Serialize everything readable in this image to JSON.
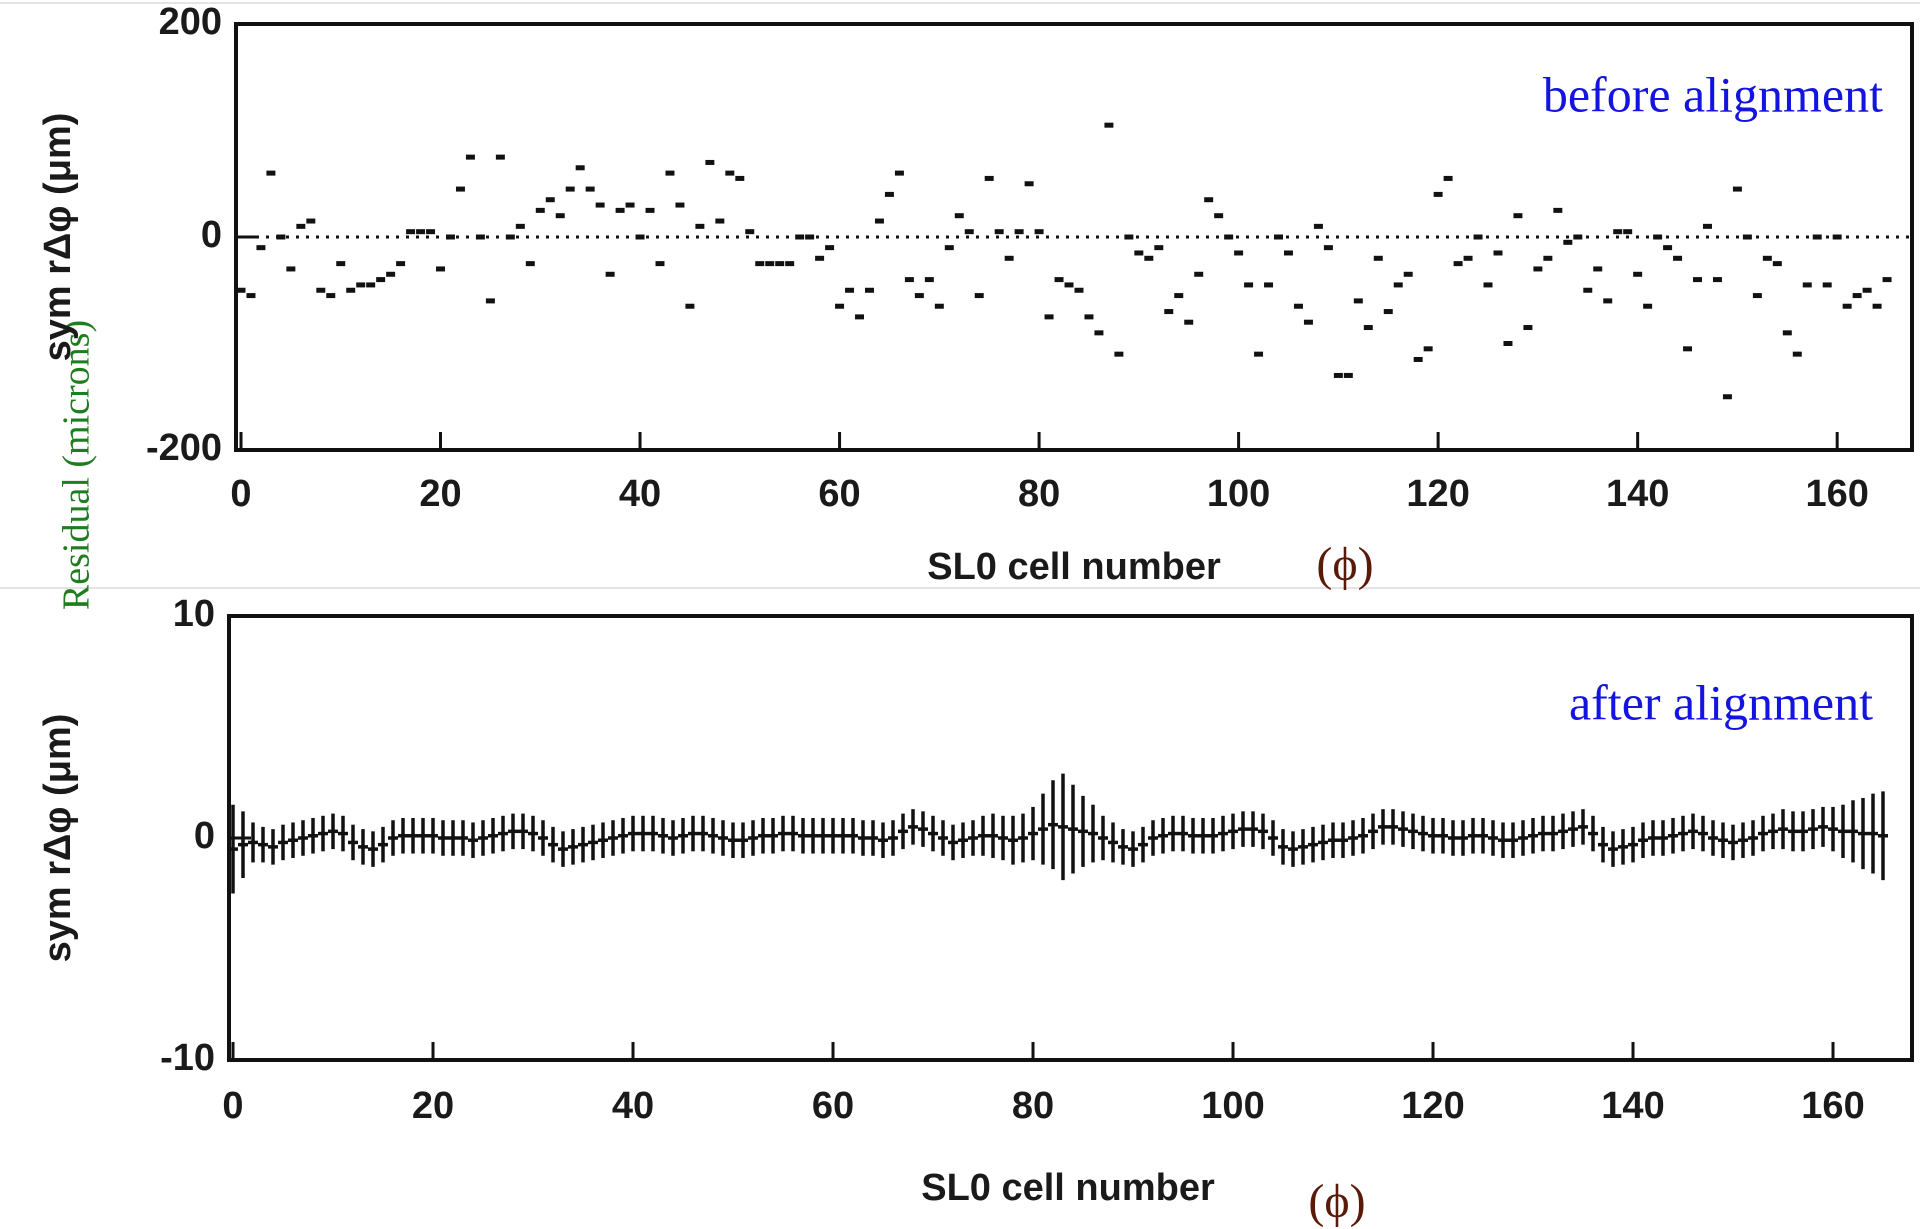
{
  "side_label": "Residual (microns)",
  "chart_data": [
    {
      "type": "scatter",
      "annotation": "before alignment",
      "x_label": "SL0 cell number",
      "x_label_suffix": "(ϕ)",
      "y_label": "sym rΔφ (μm)",
      "xlim": [
        -0.5,
        167.5
      ],
      "ylim": [
        -200,
        200
      ],
      "xticks": [
        0,
        20,
        40,
        60,
        80,
        100,
        120,
        140,
        160
      ],
      "yticks": [
        -200,
        0,
        200
      ],
      "zero_line": true,
      "color": "#111111",
      "x": [
        0,
        1,
        2,
        3,
        4,
        5,
        6,
        7,
        8,
        9,
        10,
        11,
        12,
        13,
        14,
        15,
        16,
        17,
        18,
        19,
        20,
        21,
        22,
        23,
        24,
        25,
        26,
        27,
        28,
        29,
        30,
        31,
        32,
        33,
        34,
        35,
        36,
        37,
        38,
        39,
        40,
        41,
        42,
        43,
        44,
        45,
        46,
        47,
        48,
        49,
        50,
        51,
        52,
        53,
        54,
        55,
        56,
        57,
        58,
        59,
        60,
        61,
        62,
        63,
        64,
        65,
        66,
        67,
        68,
        69,
        70,
        71,
        72,
        73,
        74,
        75,
        76,
        77,
        78,
        79,
        80,
        81,
        82,
        83,
        84,
        85,
        86,
        87,
        88,
        89,
        90,
        91,
        92,
        93,
        94,
        95,
        96,
        97,
        98,
        99,
        100,
        101,
        102,
        103,
        104,
        105,
        106,
        107,
        108,
        109,
        110,
        111,
        112,
        113,
        114,
        115,
        116,
        117,
        118,
        119,
        120,
        121,
        122,
        123,
        124,
        125,
        126,
        127,
        128,
        129,
        130,
        131,
        132,
        133,
        134,
        135,
        136,
        137,
        138,
        139,
        140,
        141,
        142,
        143,
        144,
        145,
        146,
        147,
        148,
        149,
        150,
        151,
        152,
        153,
        154,
        155,
        156,
        157,
        158,
        159,
        160,
        161,
        162,
        163,
        164,
        165
      ],
      "values": [
        -50,
        -55,
        -10,
        60,
        0,
        -30,
        10,
        15,
        -50,
        -55,
        -25,
        -50,
        -45,
        -45,
        -40,
        -35,
        -25,
        5,
        5,
        5,
        -30,
        0,
        45,
        75,
        0,
        -60,
        75,
        0,
        10,
        -25,
        25,
        35,
        20,
        45,
        65,
        45,
        30,
        -35,
        25,
        30,
        0,
        25,
        -25,
        60,
        30,
        -65,
        10,
        70,
        15,
        60,
        55,
        5,
        -25,
        -25,
        -25,
        -25,
        0,
        0,
        -20,
        -10,
        -65,
        -50,
        -75,
        -50,
        15,
        40,
        60,
        -40,
        -55,
        -40,
        -65,
        -10,
        20,
        5,
        -55,
        55,
        5,
        -20,
        5,
        50,
        5,
        -75,
        -40,
        -45,
        -50,
        -75,
        -90,
        105,
        -110,
        0,
        -15,
        -20,
        -10,
        -70,
        -55,
        -80,
        -35,
        35,
        20,
        0,
        -15,
        -45,
        -110,
        -45,
        0,
        -15,
        -65,
        -80,
        10,
        -10,
        -130,
        -130,
        -60,
        -85,
        -20,
        -70,
        -45,
        -35,
        -115,
        -105,
        40,
        55,
        -25,
        -20,
        0,
        -45,
        -15,
        -100,
        20,
        -85,
        -30,
        -20,
        25,
        -5,
        0,
        -50,
        -30,
        -60,
        5,
        5,
        -35,
        -65,
        0,
        -10,
        -20,
        -105,
        -40,
        10,
        -40,
        -150,
        45,
        0,
        -55,
        -20,
        -25,
        -90,
        -110,
        -45,
        0,
        -45,
        0,
        -65,
        -55,
        -50,
        -65,
        -40
      ]
    },
    {
      "type": "errorbar",
      "annotation": "after alignment",
      "x_label": "SL0 cell number",
      "x_label_suffix": "(ϕ)",
      "y_label": "sym rΔφ (μm)",
      "xlim": [
        -0.4,
        167.9
      ],
      "ylim": [
        -10,
        10
      ],
      "xticks": [
        0,
        20,
        40,
        60,
        80,
        100,
        120,
        140,
        160
      ],
      "yticks": [
        -10,
        0,
        10
      ],
      "zero_line": false,
      "color": "#111111",
      "x": [
        0,
        1,
        2,
        3,
        4,
        5,
        6,
        7,
        8,
        9,
        10,
        11,
        12,
        13,
        14,
        15,
        16,
        17,
        18,
        19,
        20,
        21,
        22,
        23,
        24,
        25,
        26,
        27,
        28,
        29,
        30,
        31,
        32,
        33,
        34,
        35,
        36,
        37,
        38,
        39,
        40,
        41,
        42,
        43,
        44,
        45,
        46,
        47,
        48,
        49,
        50,
        51,
        52,
        53,
        54,
        55,
        56,
        57,
        58,
        59,
        60,
        61,
        62,
        63,
        64,
        65,
        66,
        67,
        68,
        69,
        70,
        71,
        72,
        73,
        74,
        75,
        76,
        77,
        78,
        79,
        80,
        81,
        82,
        83,
        84,
        85,
        86,
        87,
        88,
        89,
        90,
        91,
        92,
        93,
        94,
        95,
        96,
        97,
        98,
        99,
        100,
        101,
        102,
        103,
        104,
        105,
        106,
        107,
        108,
        109,
        110,
        111,
        112,
        113,
        114,
        115,
        116,
        117,
        118,
        119,
        120,
        121,
        122,
        123,
        124,
        125,
        126,
        127,
        128,
        129,
        130,
        131,
        132,
        133,
        134,
        135,
        136,
        137,
        138,
        139,
        140,
        141,
        142,
        143,
        144,
        145,
        146,
        147,
        148,
        149,
        150,
        151,
        152,
        153,
        154,
        155,
        156,
        157,
        158,
        159,
        160,
        161,
        162,
        163,
        164,
        165
      ],
      "values": [
        -0.5,
        -0.3,
        -0.2,
        -0.3,
        -0.4,
        -0.2,
        -0.1,
        0,
        0.1,
        0.2,
        0.3,
        0.2,
        -0.2,
        -0.4,
        -0.5,
        -0.3,
        0,
        0.1,
        0.1,
        0.1,
        0.1,
        0,
        0,
        0,
        -0.1,
        0,
        0.1,
        0.2,
        0.3,
        0.3,
        0.2,
        0,
        -0.3,
        -0.5,
        -0.4,
        -0.3,
        -0.2,
        -0.1,
        0,
        0.1,
        0.2,
        0.2,
        0.2,
        0.1,
        0,
        0.1,
        0.2,
        0.2,
        0.1,
        0,
        -0.1,
        -0.1,
        0,
        0.1,
        0.1,
        0.2,
        0.2,
        0.1,
        0.1,
        0.1,
        0.1,
        0.1,
        0.1,
        0,
        0,
        -0.1,
        0,
        0.3,
        0.5,
        0.4,
        0.2,
        0,
        -0.2,
        -0.1,
        0,
        0.1,
        0.1,
        0,
        -0.1,
        0,
        0.2,
        0.4,
        0.6,
        0.5,
        0.4,
        0.3,
        0.2,
        0,
        -0.2,
        -0.4,
        -0.5,
        -0.3,
        0,
        0.1,
        0.2,
        0.2,
        0.1,
        0.1,
        0.1,
        0.2,
        0.3,
        0.4,
        0.4,
        0.3,
        0,
        -0.4,
        -0.5,
        -0.4,
        -0.3,
        -0.2,
        -0.1,
        -0.1,
        0,
        0.1,
        0.3,
        0.5,
        0.5,
        0.4,
        0.3,
        0.2,
        0.1,
        0.1,
        0,
        0,
        0.1,
        0.1,
        0,
        -0.1,
        -0.1,
        0,
        0.1,
        0.2,
        0.2,
        0.3,
        0.4,
        0.5,
        0.2,
        -0.3,
        -0.5,
        -0.4,
        -0.3,
        -0.1,
        0,
        0,
        0.1,
        0.2,
        0.3,
        0.2,
        0,
        -0.1,
        -0.2,
        -0.1,
        0,
        0.2,
        0.3,
        0.4,
        0.3,
        0.3,
        0.4,
        0.5,
        0.4,
        0.3,
        0.3,
        0.2,
        0.2,
        0.1
      ],
      "errors": [
        2.0,
        1.5,
        0.9,
        0.8,
        0.8,
        0.8,
        0.8,
        0.8,
        0.8,
        0.8,
        0.8,
        0.8,
        0.8,
        0.8,
        0.8,
        0.8,
        0.8,
        0.8,
        0.8,
        0.8,
        0.8,
        0.8,
        0.8,
        0.8,
        0.8,
        0.8,
        0.8,
        0.8,
        0.8,
        0.8,
        0.8,
        0.8,
        0.8,
        0.8,
        0.8,
        0.8,
        0.8,
        0.8,
        0.8,
        0.8,
        0.8,
        0.8,
        0.8,
        0.8,
        0.8,
        0.8,
        0.8,
        0.8,
        0.8,
        0.8,
        0.8,
        0.8,
        0.8,
        0.8,
        0.8,
        0.8,
        0.8,
        0.8,
        0.8,
        0.8,
        0.8,
        0.8,
        0.8,
        0.8,
        0.8,
        0.8,
        0.8,
        0.8,
        0.8,
        0.8,
        0.8,
        0.8,
        0.8,
        0.8,
        0.8,
        0.9,
        1.0,
        1.0,
        1.1,
        1.1,
        1.2,
        1.6,
        2.0,
        2.4,
        2.0,
        1.6,
        1.3,
        1.0,
        0.9,
        0.8,
        0.8,
        0.8,
        0.8,
        0.8,
        0.8,
        0.8,
        0.8,
        0.8,
        0.8,
        0.8,
        0.8,
        0.8,
        0.8,
        0.8,
        0.8,
        0.8,
        0.8,
        0.8,
        0.8,
        0.8,
        0.8,
        0.8,
        0.8,
        0.8,
        0.8,
        0.8,
        0.8,
        0.8,
        0.8,
        0.8,
        0.8,
        0.8,
        0.8,
        0.8,
        0.8,
        0.8,
        0.8,
        0.8,
        0.8,
        0.8,
        0.8,
        0.8,
        0.8,
        0.8,
        0.8,
        0.8,
        0.8,
        0.8,
        0.8,
        0.8,
        0.8,
        0.8,
        0.8,
        0.8,
        0.8,
        0.8,
        0.8,
        0.8,
        0.8,
        0.8,
        0.8,
        0.8,
        0.8,
        0.8,
        0.8,
        0.9,
        0.9,
        0.9,
        0.9,
        0.9,
        1.0,
        1.2,
        1.4,
        1.6,
        1.8,
        2.0
      ]
    }
  ]
}
